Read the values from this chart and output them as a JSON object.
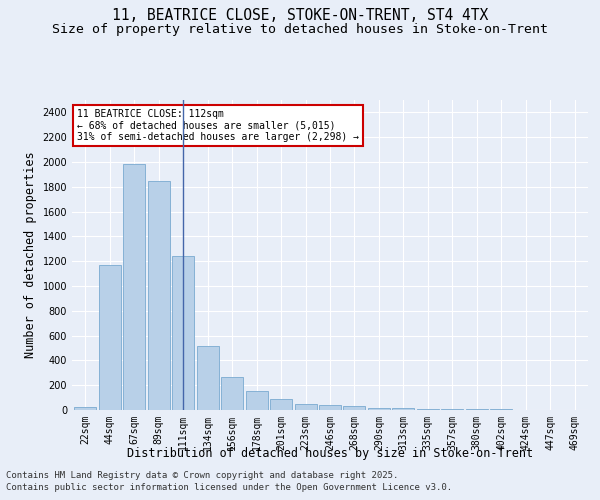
{
  "title_line1": "11, BEATRICE CLOSE, STOKE-ON-TRENT, ST4 4TX",
  "title_line2": "Size of property relative to detached houses in Stoke-on-Trent",
  "xlabel": "Distribution of detached houses by size in Stoke-on-Trent",
  "ylabel": "Number of detached properties",
  "categories": [
    "22sqm",
    "44sqm",
    "67sqm",
    "89sqm",
    "111sqm",
    "134sqm",
    "156sqm",
    "178sqm",
    "201sqm",
    "223sqm",
    "246sqm",
    "268sqm",
    "290sqm",
    "313sqm",
    "335sqm",
    "357sqm",
    "380sqm",
    "402sqm",
    "424sqm",
    "447sqm",
    "469sqm"
  ],
  "values": [
    28,
    1170,
    1980,
    1850,
    1240,
    515,
    270,
    155,
    90,
    50,
    40,
    30,
    20,
    15,
    5,
    5,
    5,
    5,
    3,
    2,
    2
  ],
  "bar_color": "#b8d0e8",
  "bar_edge_color": "#7aaad0",
  "highlight_bar_index": 4,
  "highlight_line_color": "#4466aa",
  "annotation_text": "11 BEATRICE CLOSE: 112sqm\n← 68% of detached houses are smaller (5,015)\n31% of semi-detached houses are larger (2,298) →",
  "annotation_box_color": "#ffffff",
  "annotation_box_edge": "#cc0000",
  "ylim": [
    0,
    2500
  ],
  "yticks": [
    0,
    200,
    400,
    600,
    800,
    1000,
    1200,
    1400,
    1600,
    1800,
    2000,
    2200,
    2400
  ],
  "footer_line1": "Contains HM Land Registry data © Crown copyright and database right 2025.",
  "footer_line2": "Contains public sector information licensed under the Open Government Licence v3.0.",
  "bg_color": "#e8eef8",
  "plot_bg_color": "#e8eef8",
  "grid_color": "#ffffff",
  "title_fontsize": 10.5,
  "subtitle_fontsize": 9.5,
  "axis_label_fontsize": 8.5,
  "tick_fontsize": 7,
  "annotation_fontsize": 7,
  "footer_fontsize": 6.5
}
